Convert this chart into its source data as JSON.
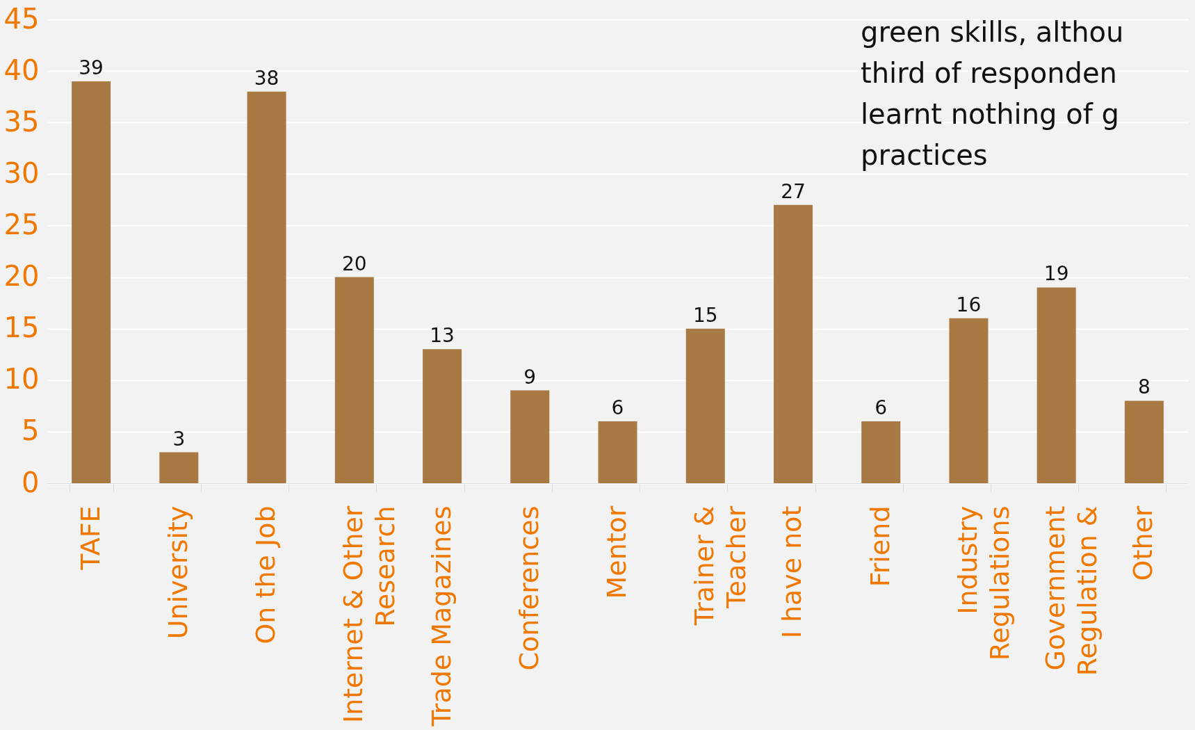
{
  "chart_data": {
    "type": "bar",
    "categories": [
      "TAFE",
      "University",
      "On the Job",
      "Internet & Other\nResearch",
      "Trade Magazines",
      "Conferences",
      "Mentor",
      "Trainer &\nTeacher",
      "I have not",
      "Friend",
      "Industry\nRegulations",
      "Government\nRegulation &",
      "Other"
    ],
    "values": [
      39,
      3,
      38,
      20,
      13,
      9,
      6,
      15,
      27,
      6,
      16,
      19,
      8
    ],
    "color": "#a87942",
    "ylim": [
      0,
      45
    ],
    "yticks": [
      0,
      5,
      10,
      15,
      20,
      25,
      30,
      35,
      40,
      45
    ],
    "grid": "y",
    "data_labels": true,
    "annotations": [
      "green skills, althou\nthird of responden\nlearnt nothing of g\npractices"
    ]
  }
}
